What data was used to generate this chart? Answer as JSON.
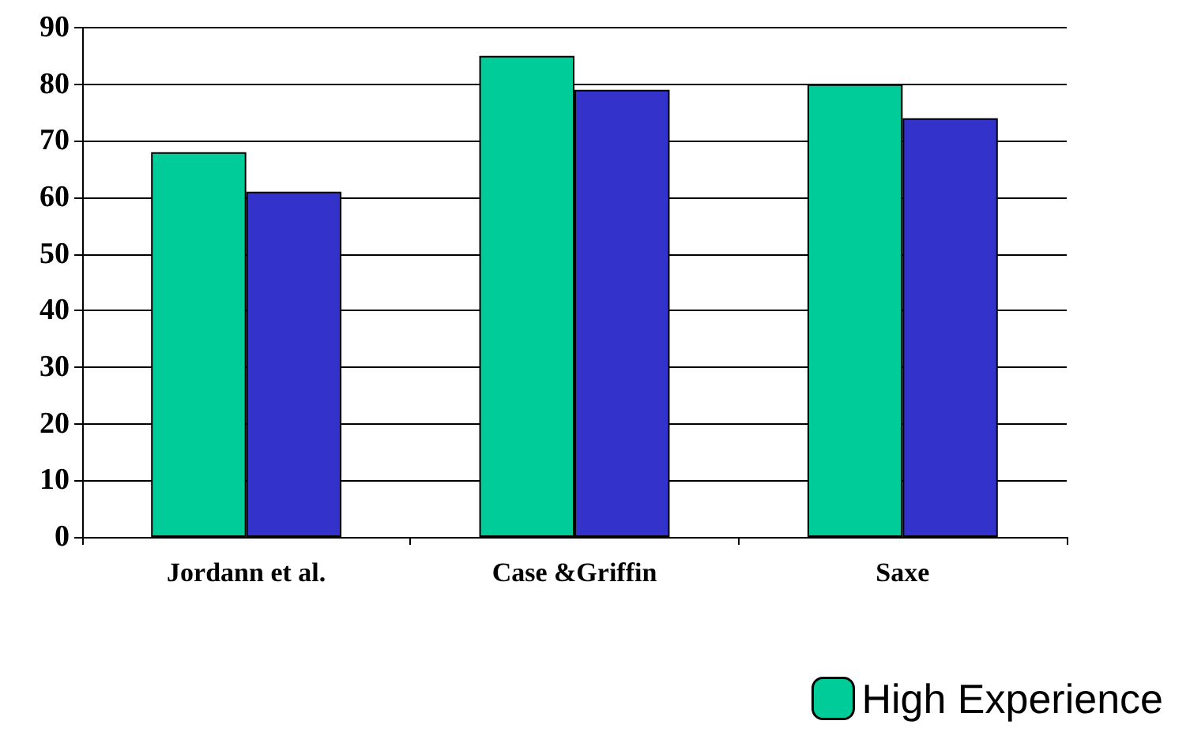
{
  "chart_data": {
    "type": "bar",
    "categories": [
      "Jordann et al.",
      "Case &Griffin",
      "Saxe"
    ],
    "series": [
      {
        "name": "High Experience",
        "color": "#00cc99",
        "values": [
          68,
          85,
          80
        ]
      },
      {
        "color": "#3333cc",
        "values": [
          61,
          79,
          74
        ]
      }
    ],
    "ylim": [
      0,
      90
    ],
    "yticks": [
      0,
      10,
      20,
      30,
      40,
      50,
      60,
      70,
      80,
      90
    ],
    "grid": "y",
    "legend": "bottom right"
  }
}
